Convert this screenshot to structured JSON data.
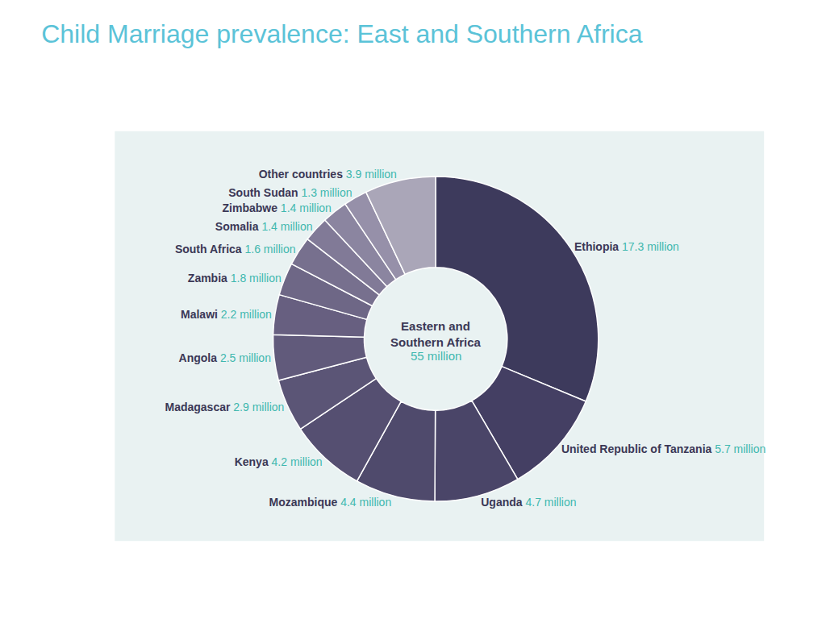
{
  "chart_data": {
    "type": "pie",
    "title": "Child Marriage prevalence: East and Southern Africa",
    "categories": [
      "Ethiopia",
      "United Republic of Tanzania",
      "Uganda",
      "Mozambique",
      "Kenya",
      "Madagascar",
      "Angola",
      "Malawi",
      "Zambia",
      "South Africa",
      "Somalia",
      "Zimbabwe",
      "South Sudan",
      "Other countries"
    ],
    "values": [
      17.3,
      5.7,
      4.7,
      4.4,
      4.2,
      2.9,
      2.5,
      2.2,
      1.8,
      1.6,
      1.4,
      1.4,
      1.3,
      3.9
    ],
    "value_labels": [
      "17.3 million",
      "5.7 million",
      "4.7 million",
      "4.4 million",
      "4.2 million",
      "2.9 million",
      "2.5 million",
      "2.2 million",
      "1.8 million",
      "1.6 million",
      "1.4 million",
      "1.4 million",
      "1.3 million",
      "3.9 million"
    ],
    "colors": [
      "#3d3a5c",
      "#443f63",
      "#4a4568",
      "#4f4a6c",
      "#554f71",
      "#5b5576",
      "#615a7b",
      "#675f80",
      "#6e6786",
      "#77708e",
      "#817a97",
      "#8b85a0",
      "#9690a9",
      "#aaa6b8"
    ],
    "data_labels": true,
    "annotations": [
      "Eastern and Southern Africa",
      "55 million"
    ]
  }
}
